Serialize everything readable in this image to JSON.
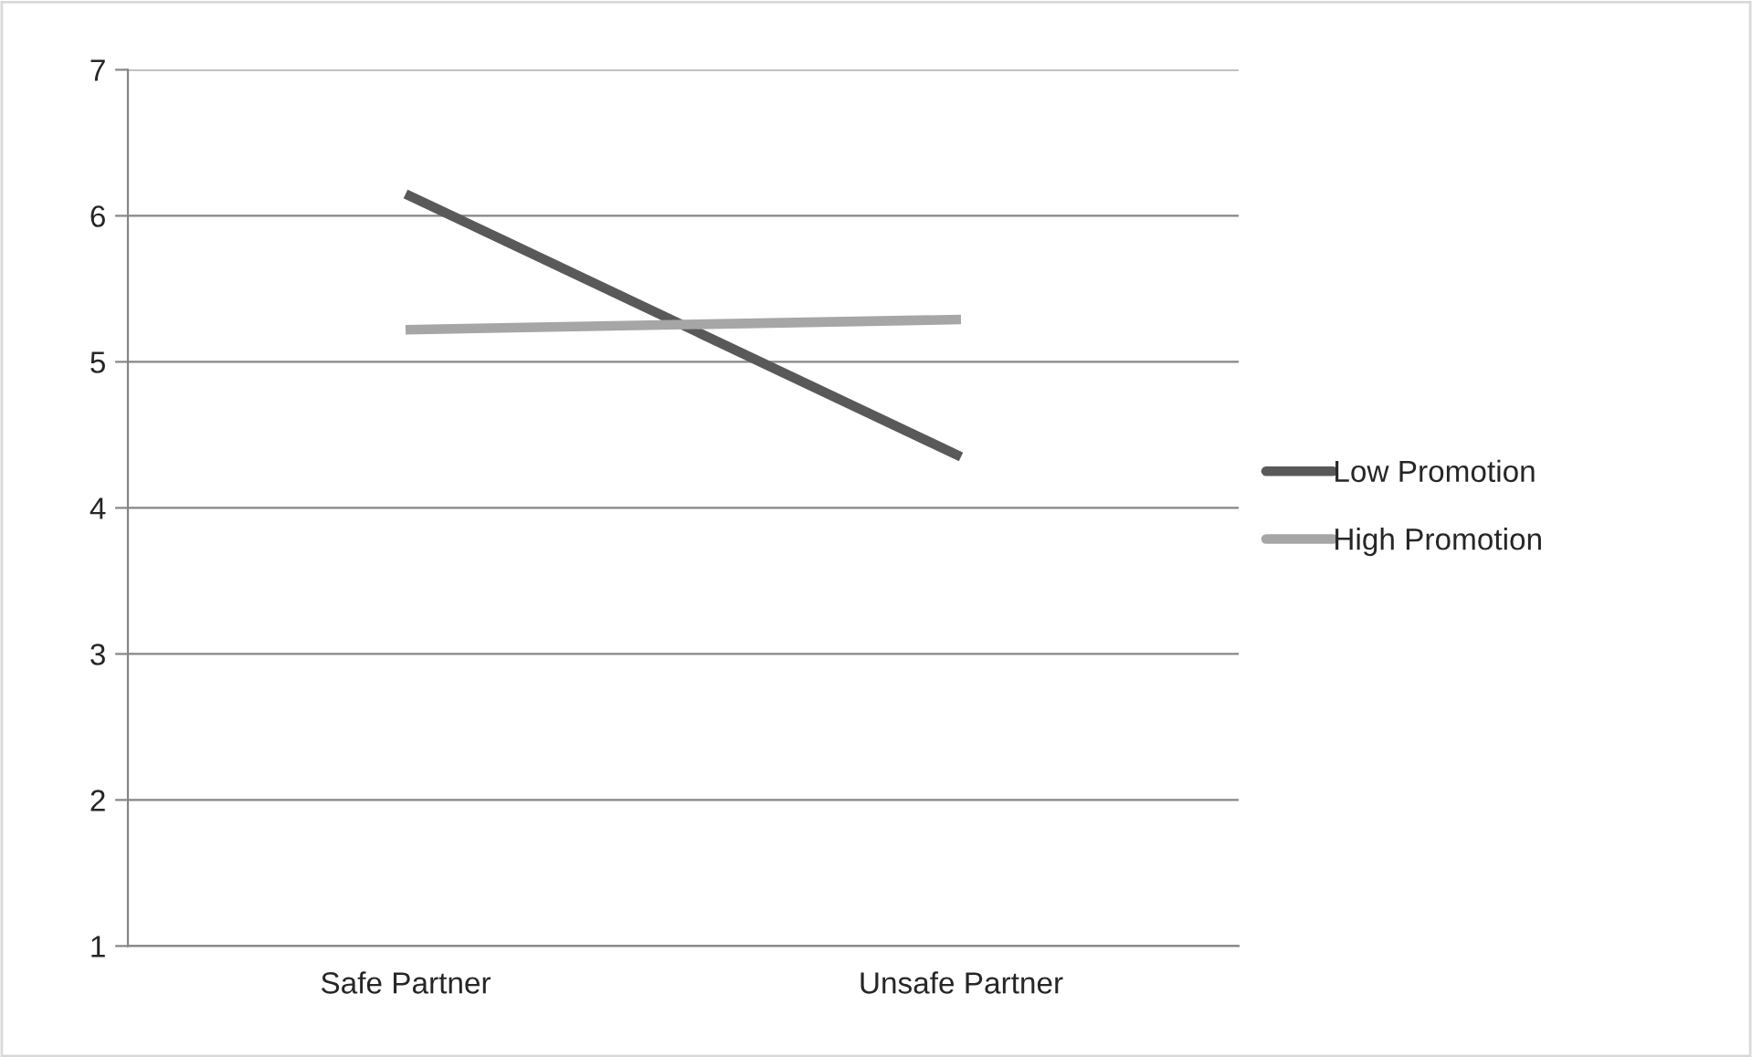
{
  "chart_data": {
    "type": "line",
    "categories": [
      "Safe Partner",
      "Unsafe Partner"
    ],
    "series": [
      {
        "name": "Low Promotion",
        "color": "#595959",
        "values": [
          6.15,
          4.35
        ]
      },
      {
        "name": "High Promotion",
        "color": "#a6a6a6",
        "values": [
          5.22,
          5.29
        ]
      }
    ],
    "ylim": [
      1,
      7
    ],
    "yticks": [
      1,
      2,
      3,
      4,
      5,
      6,
      7
    ],
    "grid": "y",
    "legend": "right",
    "marker": "none",
    "line_style": "solid"
  }
}
